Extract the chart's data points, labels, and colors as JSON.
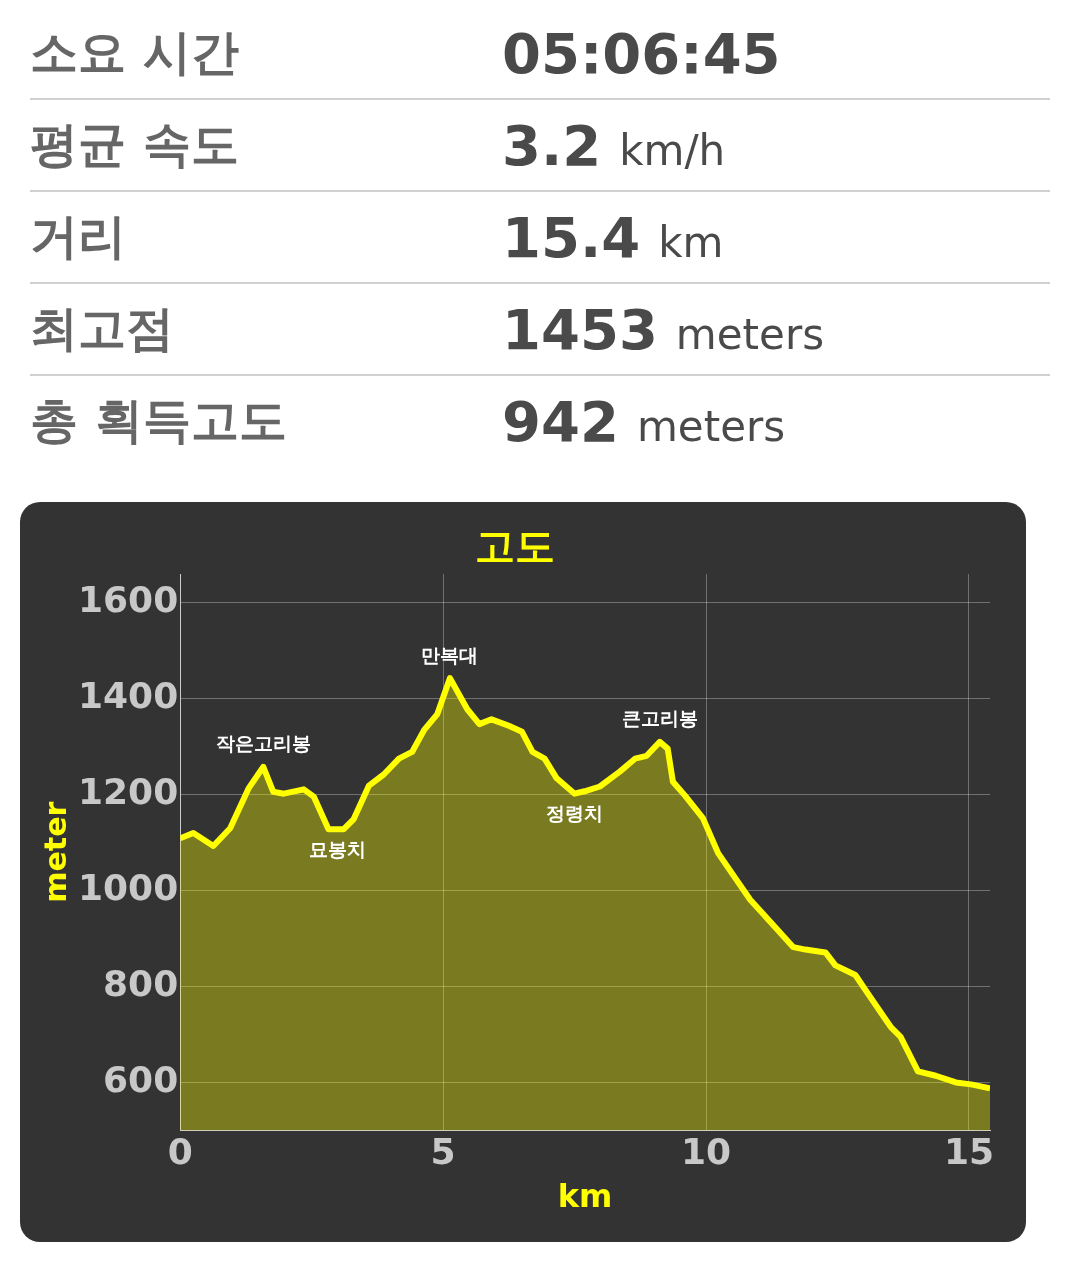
{
  "chart_data": {
    "type": "area",
    "title": "고도",
    "xlabel": "km",
    "ylabel": "meter",
    "annotations": [
      "소요 시간",
      "05:06:45",
      "평균 속도",
      "3.2 km/h",
      "거리",
      "15.4 km",
      "최고점",
      "1453 meters",
      "총 획득고도",
      "942 meters",
      {
        "text": "작은고리봉",
        "x": 1.58,
        "y": 1258
      },
      {
        "text": "묘봉치",
        "x": 3.0,
        "y": 1128
      },
      {
        "text": "만복대",
        "x": 5.13,
        "y": 1443
      },
      {
        "text": "정령치",
        "x": 7.5,
        "y": 1202
      },
      {
        "text": "큰고리봉",
        "x": 9.12,
        "y": 1310
      }
    ],
    "x": [
      0,
      0.25,
      0.63,
      0.95,
      1.3,
      1.58,
      1.77,
      1.97,
      2.35,
      2.54,
      2.82,
      3.11,
      3.3,
      3.59,
      3.87,
      4.16,
      4.41,
      4.64,
      4.89,
      5.13,
      5.46,
      5.69,
      5.92,
      6.26,
      6.5,
      6.7,
      6.93,
      7.16,
      7.5,
      7.69,
      7.98,
      8.36,
      8.65,
      8.87,
      9.12,
      9.27,
      9.37,
      9.6,
      9.94,
      10.23,
      10.55,
      10.84,
      11.32,
      11.66,
      11.89,
      12.27,
      12.46,
      12.84,
      13.03,
      13.51,
      13.7,
      14.03,
      14.37,
      14.75,
      15.04,
      15.4
    ],
    "series": [
      {
        "color": "#ffff00",
        "values": [
          1109,
          1120,
          1093,
          1130,
          1213,
          1258,
          1206,
          1202,
          1211,
          1196,
          1128,
          1128,
          1149,
          1219,
          1242,
          1275,
          1289,
          1335,
          1368,
          1443,
          1378,
          1347,
          1357,
          1343,
          1331,
          1289,
          1275,
          1234,
          1202,
          1207,
          1217,
          1248,
          1275,
          1281,
          1310,
          1296,
          1227,
          1198,
          1151,
          1078,
          1027,
          981,
          923,
          882,
          877,
          871,
          844,
          824,
          793,
          716,
          695,
          623,
          614,
          600,
          596,
          588
        ]
      }
    ],
    "xlim": [
      0,
      15.4
    ],
    "xticks": [
      0,
      5,
      10,
      15
    ],
    "ylim": [
      500,
      1660
    ],
    "yticks": [
      600,
      800,
      1000,
      1200,
      1400,
      1600
    ],
    "grid": true,
    "legend": false,
    "marker": "none",
    "line_style": "solid"
  }
}
